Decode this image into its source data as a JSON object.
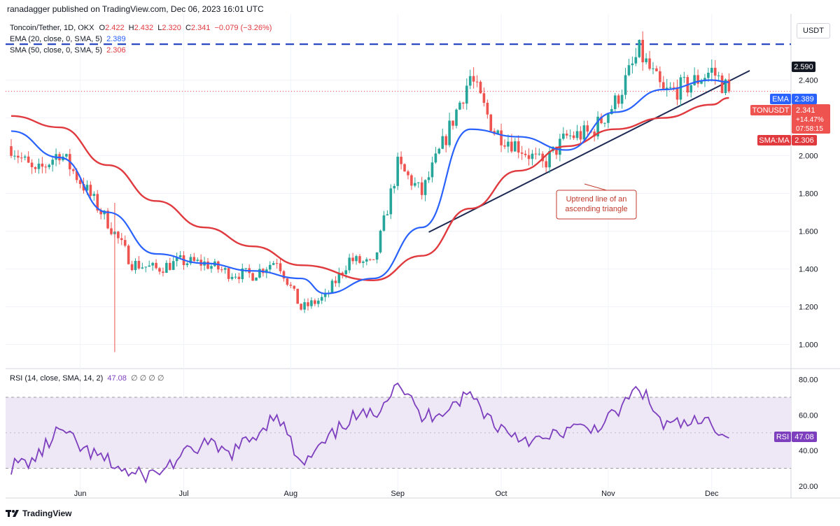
{
  "header": {
    "text": "ranadagger published on TradingView.com, Dec 06, 2023 16:01 UTC"
  },
  "legend": {
    "symbol": "Toncoin/Tether, 1D, OKX",
    "o_label": "O",
    "o": "2.422",
    "h_label": "H",
    "h": "2.432",
    "l_label": "L",
    "l": "2.320",
    "c_label": "C",
    "c": "2.341",
    "change": "−0.079 (−3.26%)",
    "ema_label": "EMA (20, close, 0, SMA, 5)",
    "ema_value": "2.389",
    "sma_label": "SMA (50, close, 0, SMA, 5)",
    "sma_value": "2.306"
  },
  "currency": "USDT",
  "rsi_legend": {
    "label": "RSI (14, close, SMA, 14, 2)",
    "value": "47.08",
    "placeholders": "∅ ∅ ∅ ∅"
  },
  "price_badges": {
    "resistance": "2.590",
    "ema_tag": "EMA",
    "ema": "2.389",
    "symbol_tag": "TONUSDT",
    "last": "2.341",
    "pct": "+14.47%",
    "countdown": "07:58:15",
    "sma_tag": "SMA:MA",
    "sma": "2.306",
    "rsi_tag": "RSI",
    "rsi": "47.08"
  },
  "annotation": {
    "line1": "Uptrend line of an",
    "line2": "ascending triangle"
  },
  "footer": {
    "brand": "TradingView"
  },
  "colors": {
    "up": "#26a69a",
    "down": "#ef5350",
    "ema": "#2962ff",
    "sma": "#e0393e",
    "trendline": "#1e2a54",
    "resistance": "#1f3fbf",
    "rsi": "#7e3fbf",
    "rsi_band": "#ede7f6"
  },
  "chart_data": {
    "type": "candlestick",
    "title": "Toncoin/Tether, 1D, OKX",
    "x_tick_labels": [
      "Jun",
      "Jul",
      "Aug",
      "Sep",
      "Oct",
      "Nov",
      "Dec"
    ],
    "y_tick_labels": [
      "1.000",
      "1.200",
      "1.400",
      "1.600",
      "1.800",
      "2.000",
      "2.200",
      "2.400"
    ],
    "ylim": [
      0.88,
      2.75
    ],
    "resistance_level": 2.59,
    "trendline": {
      "start": [
        "2023-09-10",
        1.595
      ],
      "end": [
        "2023-12-12",
        2.45
      ]
    },
    "close_weekly": [
      [
        "2023-05-12",
        2.05
      ],
      [
        "2023-05-19",
        1.9
      ],
      [
        "2023-05-26",
        2.02
      ],
      [
        "2023-06-02",
        1.84
      ],
      [
        "2023-06-09",
        1.65
      ],
      [
        "2023-06-16",
        1.43
      ],
      [
        "2023-06-23",
        1.4
      ],
      [
        "2023-06-30",
        1.44
      ],
      [
        "2023-07-07",
        1.43
      ],
      [
        "2023-07-14",
        1.38
      ],
      [
        "2023-07-21",
        1.37
      ],
      [
        "2023-07-28",
        1.45
      ],
      [
        "2023-08-04",
        1.19
      ],
      [
        "2023-08-11",
        1.25
      ],
      [
        "2023-08-18",
        1.45
      ],
      [
        "2023-08-25",
        1.42
      ],
      [
        "2023-09-01",
        1.95
      ],
      [
        "2023-09-08",
        1.8
      ],
      [
        "2023-09-15",
        2.1
      ],
      [
        "2023-09-22",
        2.42
      ],
      [
        "2023-09-29",
        2.13
      ],
      [
        "2023-10-06",
        2.05
      ],
      [
        "2023-10-13",
        1.95
      ],
      [
        "2023-10-20",
        2.1
      ],
      [
        "2023-10-27",
        2.12
      ],
      [
        "2023-11-03",
        2.28
      ],
      [
        "2023-11-10",
        2.55
      ],
      [
        "2023-11-17",
        2.33
      ],
      [
        "2023-11-24",
        2.37
      ],
      [
        "2023-12-01",
        2.45
      ],
      [
        "2023-12-06",
        2.341
      ]
    ],
    "ema20_weekly": [
      [
        "2023-05-12",
        2.13
      ],
      [
        "2023-05-26",
        1.99
      ],
      [
        "2023-06-09",
        1.7
      ],
      [
        "2023-06-23",
        1.48
      ],
      [
        "2023-07-07",
        1.43
      ],
      [
        "2023-07-21",
        1.39
      ],
      [
        "2023-08-04",
        1.35
      ],
      [
        "2023-08-11",
        1.27
      ],
      [
        "2023-08-25",
        1.35
      ],
      [
        "2023-09-08",
        1.62
      ],
      [
        "2023-09-22",
        2.14
      ],
      [
        "2023-10-06",
        2.1
      ],
      [
        "2023-10-20",
        2.03
      ],
      [
        "2023-11-03",
        2.23
      ],
      [
        "2023-11-17",
        2.35
      ],
      [
        "2023-12-01",
        2.4
      ],
      [
        "2023-12-06",
        2.389
      ]
    ],
    "sma50_weekly": [
      [
        "2023-05-12",
        2.21
      ],
      [
        "2023-05-26",
        2.15
      ],
      [
        "2023-06-09",
        1.95
      ],
      [
        "2023-06-23",
        1.76
      ],
      [
        "2023-07-07",
        1.62
      ],
      [
        "2023-07-21",
        1.52
      ],
      [
        "2023-08-04",
        1.42
      ],
      [
        "2023-08-25",
        1.34
      ],
      [
        "2023-09-08",
        1.47
      ],
      [
        "2023-09-22",
        1.72
      ],
      [
        "2023-10-06",
        1.92
      ],
      [
        "2023-10-20",
        2.05
      ],
      [
        "2023-11-03",
        2.14
      ],
      [
        "2023-11-17",
        2.2
      ],
      [
        "2023-12-01",
        2.27
      ],
      [
        "2023-12-06",
        2.306
      ]
    ],
    "rsi": {
      "name": "RSI (14, close, SMA, 14, 2)",
      "y_tick_labels": [
        "20.00",
        "40.00",
        "60.00",
        "80.00"
      ],
      "ylim": [
        18,
        85
      ],
      "band": [
        30,
        70
      ],
      "mid": 50,
      "values_weekly": [
        [
          "2023-05-12",
          31
        ],
        [
          "2023-05-19",
          35
        ],
        [
          "2023-05-26",
          52
        ],
        [
          "2023-06-02",
          40
        ],
        [
          "2023-06-09",
          34
        ],
        [
          "2023-06-16",
          26
        ],
        [
          "2023-06-23",
          27
        ],
        [
          "2023-06-30",
          36
        ],
        [
          "2023-07-07",
          44
        ],
        [
          "2023-07-14",
          38
        ],
        [
          "2023-07-21",
          47
        ],
        [
          "2023-07-28",
          62
        ],
        [
          "2023-08-04",
          31
        ],
        [
          "2023-08-11",
          44
        ],
        [
          "2023-08-18",
          58
        ],
        [
          "2023-08-25",
          60
        ],
        [
          "2023-09-01",
          80
        ],
        [
          "2023-09-08",
          58
        ],
        [
          "2023-09-15",
          64
        ],
        [
          "2023-09-22",
          72
        ],
        [
          "2023-09-29",
          55
        ],
        [
          "2023-10-06",
          48
        ],
        [
          "2023-10-13",
          45
        ],
        [
          "2023-10-20",
          52
        ],
        [
          "2023-10-27",
          52
        ],
        [
          "2023-11-03",
          60
        ],
        [
          "2023-11-10",
          76
        ],
        [
          "2023-11-17",
          54
        ],
        [
          "2023-11-24",
          55
        ],
        [
          "2023-12-01",
          56
        ],
        [
          "2023-12-06",
          47.08
        ]
      ]
    }
  }
}
